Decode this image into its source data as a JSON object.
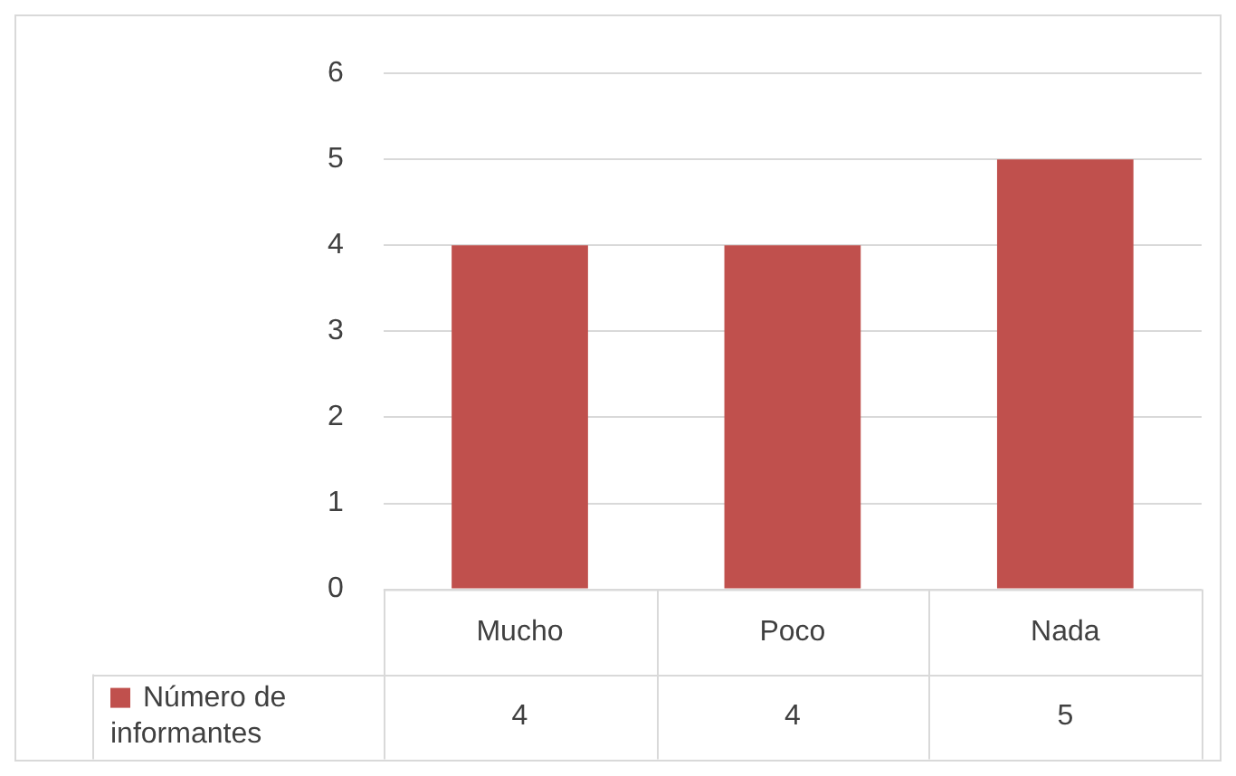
{
  "chart_data": {
    "type": "bar",
    "categories": [
      "Mucho",
      "Poco",
      "Nada"
    ],
    "series": [
      {
        "name": "Número de informantes",
        "color": "#c0504d",
        "values": [
          4,
          4,
          5
        ]
      }
    ],
    "ylim": [
      0,
      6
    ],
    "yticks": [
      0,
      1,
      2,
      3,
      4,
      5,
      6
    ],
    "grid": "y",
    "legend": "bottom",
    "data_labels": true
  }
}
